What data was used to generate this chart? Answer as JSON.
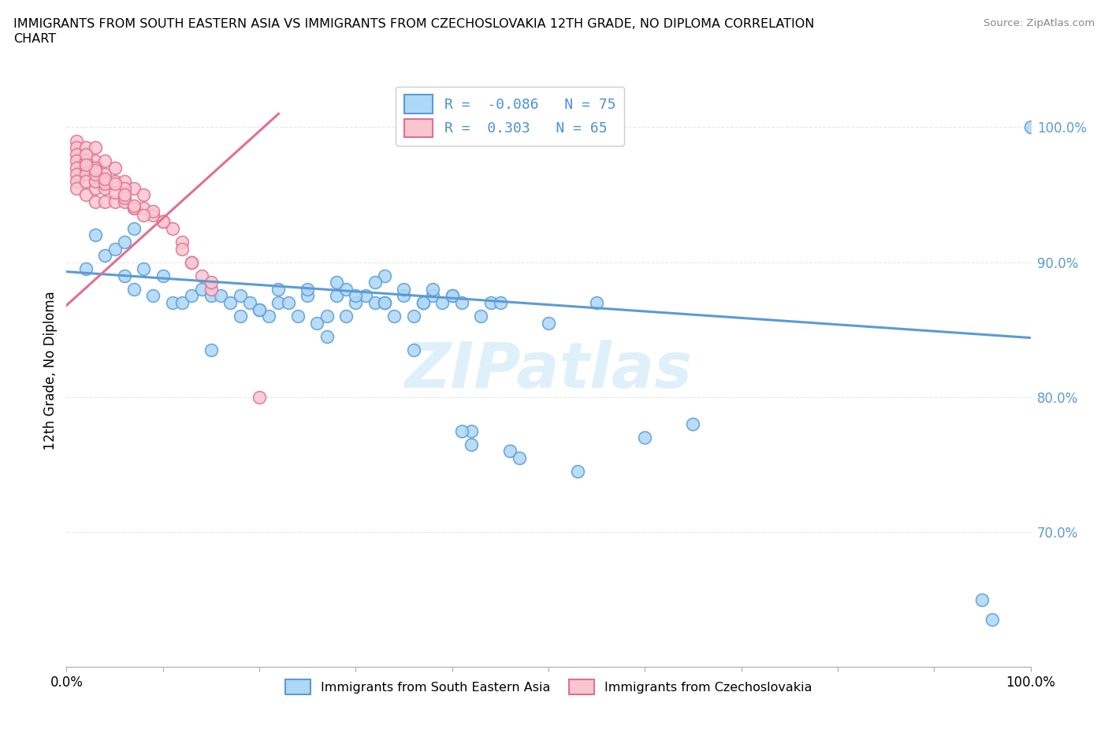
{
  "title_line1": "IMMIGRANTS FROM SOUTH EASTERN ASIA VS IMMIGRANTS FROM CZECHOSLOVAKIA 12TH GRADE, NO DIPLOMA CORRELATION",
  "title_line2": "CHART",
  "source": "Source: ZipAtlas.com",
  "ylabel": "12th Grade, No Diploma",
  "legend_entries": [
    {
      "label": "Immigrants from South Eastern Asia",
      "R": -0.086,
      "N": 75,
      "face_color": "#add8f7",
      "edge_color": "#5b9bd5",
      "line_color": "#5b9bd5"
    },
    {
      "label": "Immigrants from Czechoslovakia",
      "R": 0.303,
      "N": 65,
      "face_color": "#f9c6d0",
      "edge_color": "#e07090",
      "line_color": "#e07090"
    }
  ],
  "xlim": [
    0.0,
    1.0
  ],
  "ylim": [
    0.6,
    1.04
  ],
  "ytick_positions": [
    0.7,
    0.8,
    0.9,
    1.0
  ],
  "ytick_labels": [
    "70.0%",
    "80.0%",
    "90.0%",
    "100.0%"
  ],
  "xtick_positions": [
    0.0,
    0.1,
    0.2,
    0.3,
    0.4,
    0.5,
    0.6,
    0.7,
    0.8,
    0.9,
    1.0
  ],
  "blue_scatter_x": [
    0.02,
    0.03,
    0.04,
    0.05,
    0.06,
    0.06,
    0.07,
    0.07,
    0.08,
    0.09,
    0.1,
    0.11,
    0.12,
    0.13,
    0.14,
    0.15,
    0.16,
    0.17,
    0.18,
    0.19,
    0.2,
    0.21,
    0.22,
    0.23,
    0.24,
    0.25,
    0.26,
    0.27,
    0.28,
    0.29,
    0.3,
    0.31,
    0.32,
    0.33,
    0.34,
    0.35,
    0.36,
    0.37,
    0.38,
    0.39,
    0.4,
    0.41,
    0.42,
    0.43,
    0.44,
    0.45,
    0.46,
    0.5,
    0.53,
    0.55,
    0.33,
    0.25,
    0.28,
    0.3,
    0.32,
    0.35,
    0.38,
    0.4,
    0.22,
    0.2,
    0.15,
    0.18,
    0.27,
    0.29,
    0.36,
    0.42,
    0.47,
    0.33,
    0.37,
    0.41,
    0.6,
    0.65,
    0.95,
    0.96,
    1.0
  ],
  "blue_scatter_y": [
    0.895,
    0.92,
    0.905,
    0.91,
    0.915,
    0.89,
    0.925,
    0.88,
    0.895,
    0.875,
    0.89,
    0.87,
    0.87,
    0.875,
    0.88,
    0.875,
    0.875,
    0.87,
    0.875,
    0.87,
    0.865,
    0.86,
    0.87,
    0.87,
    0.86,
    0.875,
    0.855,
    0.86,
    0.875,
    0.88,
    0.87,
    0.875,
    0.87,
    0.87,
    0.86,
    0.875,
    0.86,
    0.87,
    0.875,
    0.87,
    0.875,
    0.87,
    0.765,
    0.86,
    0.87,
    0.87,
    0.76,
    0.855,
    0.745,
    0.87,
    0.89,
    0.88,
    0.885,
    0.875,
    0.885,
    0.88,
    0.88,
    0.875,
    0.88,
    0.865,
    0.835,
    0.86,
    0.845,
    0.86,
    0.835,
    0.775,
    0.755,
    0.87,
    0.87,
    0.775,
    0.77,
    0.78,
    0.65,
    0.635,
    1.0
  ],
  "pink_scatter_x": [
    0.01,
    0.01,
    0.01,
    0.01,
    0.01,
    0.01,
    0.01,
    0.01,
    0.02,
    0.02,
    0.02,
    0.02,
    0.02,
    0.02,
    0.03,
    0.03,
    0.03,
    0.03,
    0.03,
    0.03,
    0.04,
    0.04,
    0.04,
    0.04,
    0.05,
    0.05,
    0.05,
    0.06,
    0.06,
    0.07,
    0.07,
    0.08,
    0.09,
    0.1,
    0.11,
    0.12,
    0.13,
    0.14,
    0.15,
    0.06,
    0.07,
    0.03,
    0.04,
    0.02,
    0.03,
    0.08,
    0.09,
    0.1,
    0.12,
    0.13,
    0.15,
    0.03,
    0.04,
    0.05,
    0.06,
    0.2,
    0.03,
    0.03,
    0.04,
    0.02,
    0.02,
    0.05,
    0.06,
    0.07,
    0.08
  ],
  "pink_scatter_y": [
    0.99,
    0.985,
    0.98,
    0.975,
    0.97,
    0.965,
    0.96,
    0.955,
    0.985,
    0.975,
    0.97,
    0.965,
    0.96,
    0.95,
    0.985,
    0.975,
    0.965,
    0.96,
    0.955,
    0.945,
    0.975,
    0.965,
    0.955,
    0.945,
    0.97,
    0.96,
    0.945,
    0.96,
    0.945,
    0.955,
    0.94,
    0.94,
    0.935,
    0.93,
    0.925,
    0.915,
    0.9,
    0.89,
    0.88,
    0.955,
    0.94,
    0.97,
    0.96,
    0.975,
    0.96,
    0.95,
    0.938,
    0.93,
    0.91,
    0.9,
    0.885,
    0.965,
    0.958,
    0.952,
    0.948,
    0.8,
    0.97,
    0.968,
    0.962,
    0.98,
    0.972,
    0.958,
    0.95,
    0.942,
    0.935
  ],
  "blue_line_x": [
    0.0,
    1.0
  ],
  "blue_line_y": [
    0.893,
    0.844
  ],
  "pink_line_x": [
    0.0,
    0.22
  ],
  "pink_line_y": [
    0.868,
    1.01
  ],
  "watermark_text": "ZIPatlas",
  "background_color": "#ffffff",
  "grid_color": "#dddddd",
  "grid_alpha": 0.7
}
